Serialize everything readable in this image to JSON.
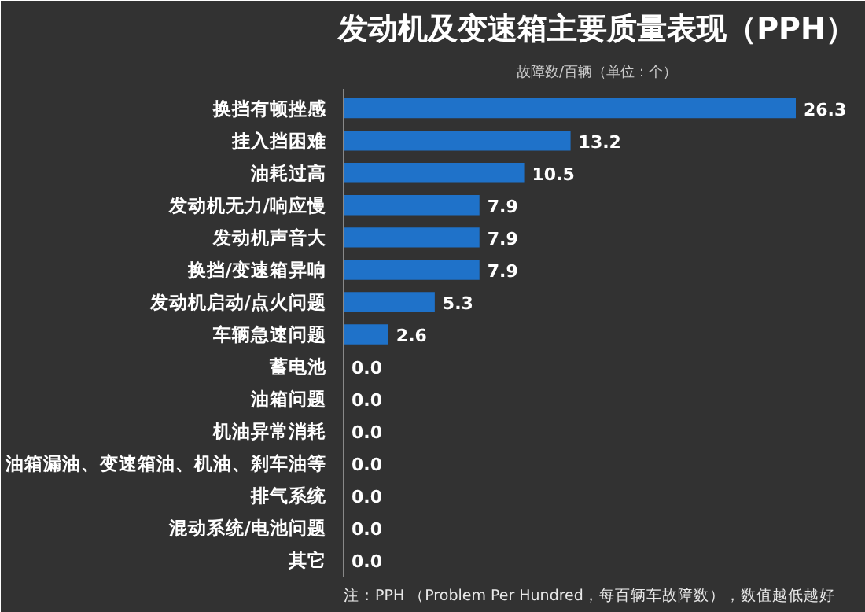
{
  "chart_data": {
    "type": "bar",
    "orientation": "horizontal",
    "title": "发动机及变速箱主要质量表现（PPH）",
    "subtitle": "故障数/百辆（单位：个）",
    "categories": [
      "换挡有顿挫感",
      "挂入挡困难",
      "油耗过高",
      "发动机无力/响应慢",
      "发动机声音大",
      "换挡/变速箱异响",
      "发动机启动/点火问题",
      "车辆急速问题",
      "蓄电池",
      "油箱问题",
      "机油异常消耗",
      "油箱漏油、变速箱油、机油、刹车油等",
      "排气系统",
      "混动系统/电池问题",
      "其它"
    ],
    "values": [
      26.3,
      13.2,
      10.5,
      7.9,
      7.9,
      7.9,
      5.3,
      2.6,
      0,
      0,
      0,
      0,
      0,
      0,
      0
    ],
    "value_labels": [
      "26.3",
      "13.2",
      "10.5",
      "7.9",
      "7.9",
      "7.9",
      "5.3",
      "2.6",
      "0.0",
      "0.0",
      "0.0",
      "0.0",
      "0.0",
      "0.0",
      "0.0"
    ],
    "color": "#1f72c9",
    "grid": false,
    "annotations": [
      "注：PPH （Problem Per Hundred，每百辆车故障数），数值越低越好"
    ]
  }
}
